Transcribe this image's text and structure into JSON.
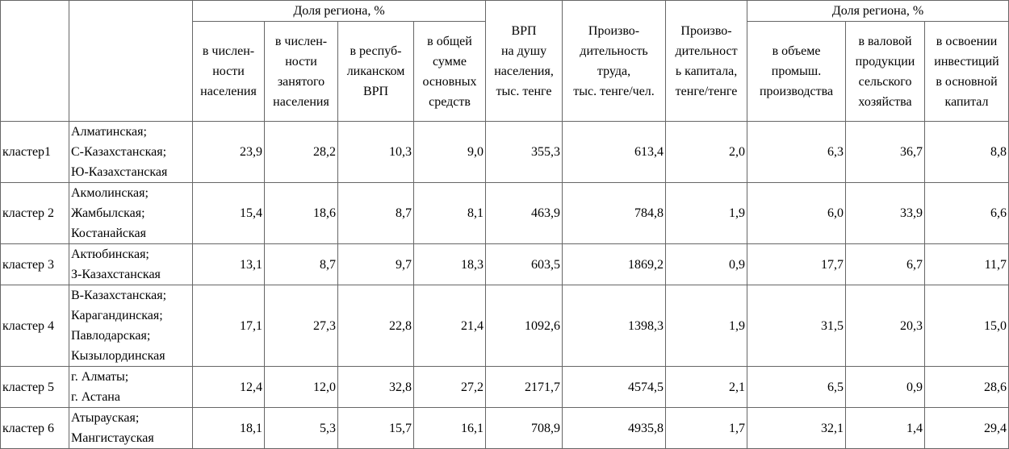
{
  "table": {
    "group1": "Доля региона, %",
    "group2": "Доля региона, %",
    "columns": [
      "в числен-\nности\nнаселения",
      "в числен-\nности\nзанятого\nнаселения",
      "в респуб-\nликанском\nВРП",
      "в общей\nсумме\nосновных\nсредств",
      "ВРП\nна душу\nнаселения,\nтыс. тенге",
      "Произво-\nдительность\nтруда,\nтыс. тенге/чел.",
      "Произво-\nдительност\nь капитала,\nтенге/тенге",
      "в объеме\nпромыш.\nпроизводства",
      "в валовой\nпродукции\nсельского\nхозяйства",
      "в освоении\nинвестиций\nв основной\nкапитал"
    ],
    "rows": [
      {
        "cluster": "кластер1",
        "regions": "Алматинская;\nС-Казахстанская;\nЮ-Казахстанская",
        "values": [
          "23,9",
          "28,2",
          "10,3",
          "9,0",
          "355,3",
          "613,4",
          "2,0",
          "6,3",
          "36,7",
          "8,8"
        ]
      },
      {
        "cluster": "кластер 2",
        "regions": "Акмолинская;\nЖамбылская;\nКостанайская",
        "values": [
          "15,4",
          "18,6",
          "8,7",
          "8,1",
          "463,9",
          "784,8",
          "1,9",
          "6,0",
          "33,9",
          "6,6"
        ]
      },
      {
        "cluster": "кластер 3",
        "regions": "Актюбинская;\nЗ-Казахстанская",
        "values": [
          "13,1",
          "8,7",
          "9,7",
          "18,3",
          "603,5",
          "1869,2",
          "0,9",
          "17,7",
          "6,7",
          "11,7"
        ]
      },
      {
        "cluster": "кластер 4",
        "regions": "В-Казахстанская;\nКарагандинская;\nПавлодарская;\nКызылординская",
        "values": [
          "17,1",
          "27,3",
          "22,8",
          "21,4",
          "1092,6",
          "1398,3",
          "1,9",
          "31,5",
          "20,3",
          "15,0"
        ]
      },
      {
        "cluster": "кластер 5",
        "regions": "г. Алматы;\nг. Астана",
        "values": [
          "12,4",
          "12,0",
          "32,8",
          "27,2",
          "2171,7",
          "4574,5",
          "2,1",
          "6,5",
          "0,9",
          "28,6"
        ]
      },
      {
        "cluster": "кластер 6",
        "regions": "Атырауская;\nМангистауская",
        "values": [
          "18,1",
          "5,3",
          "15,7",
          "16,1",
          "708,9",
          "4935,8",
          "1,7",
          "32,1",
          "1,4",
          "29,4"
        ]
      }
    ]
  }
}
